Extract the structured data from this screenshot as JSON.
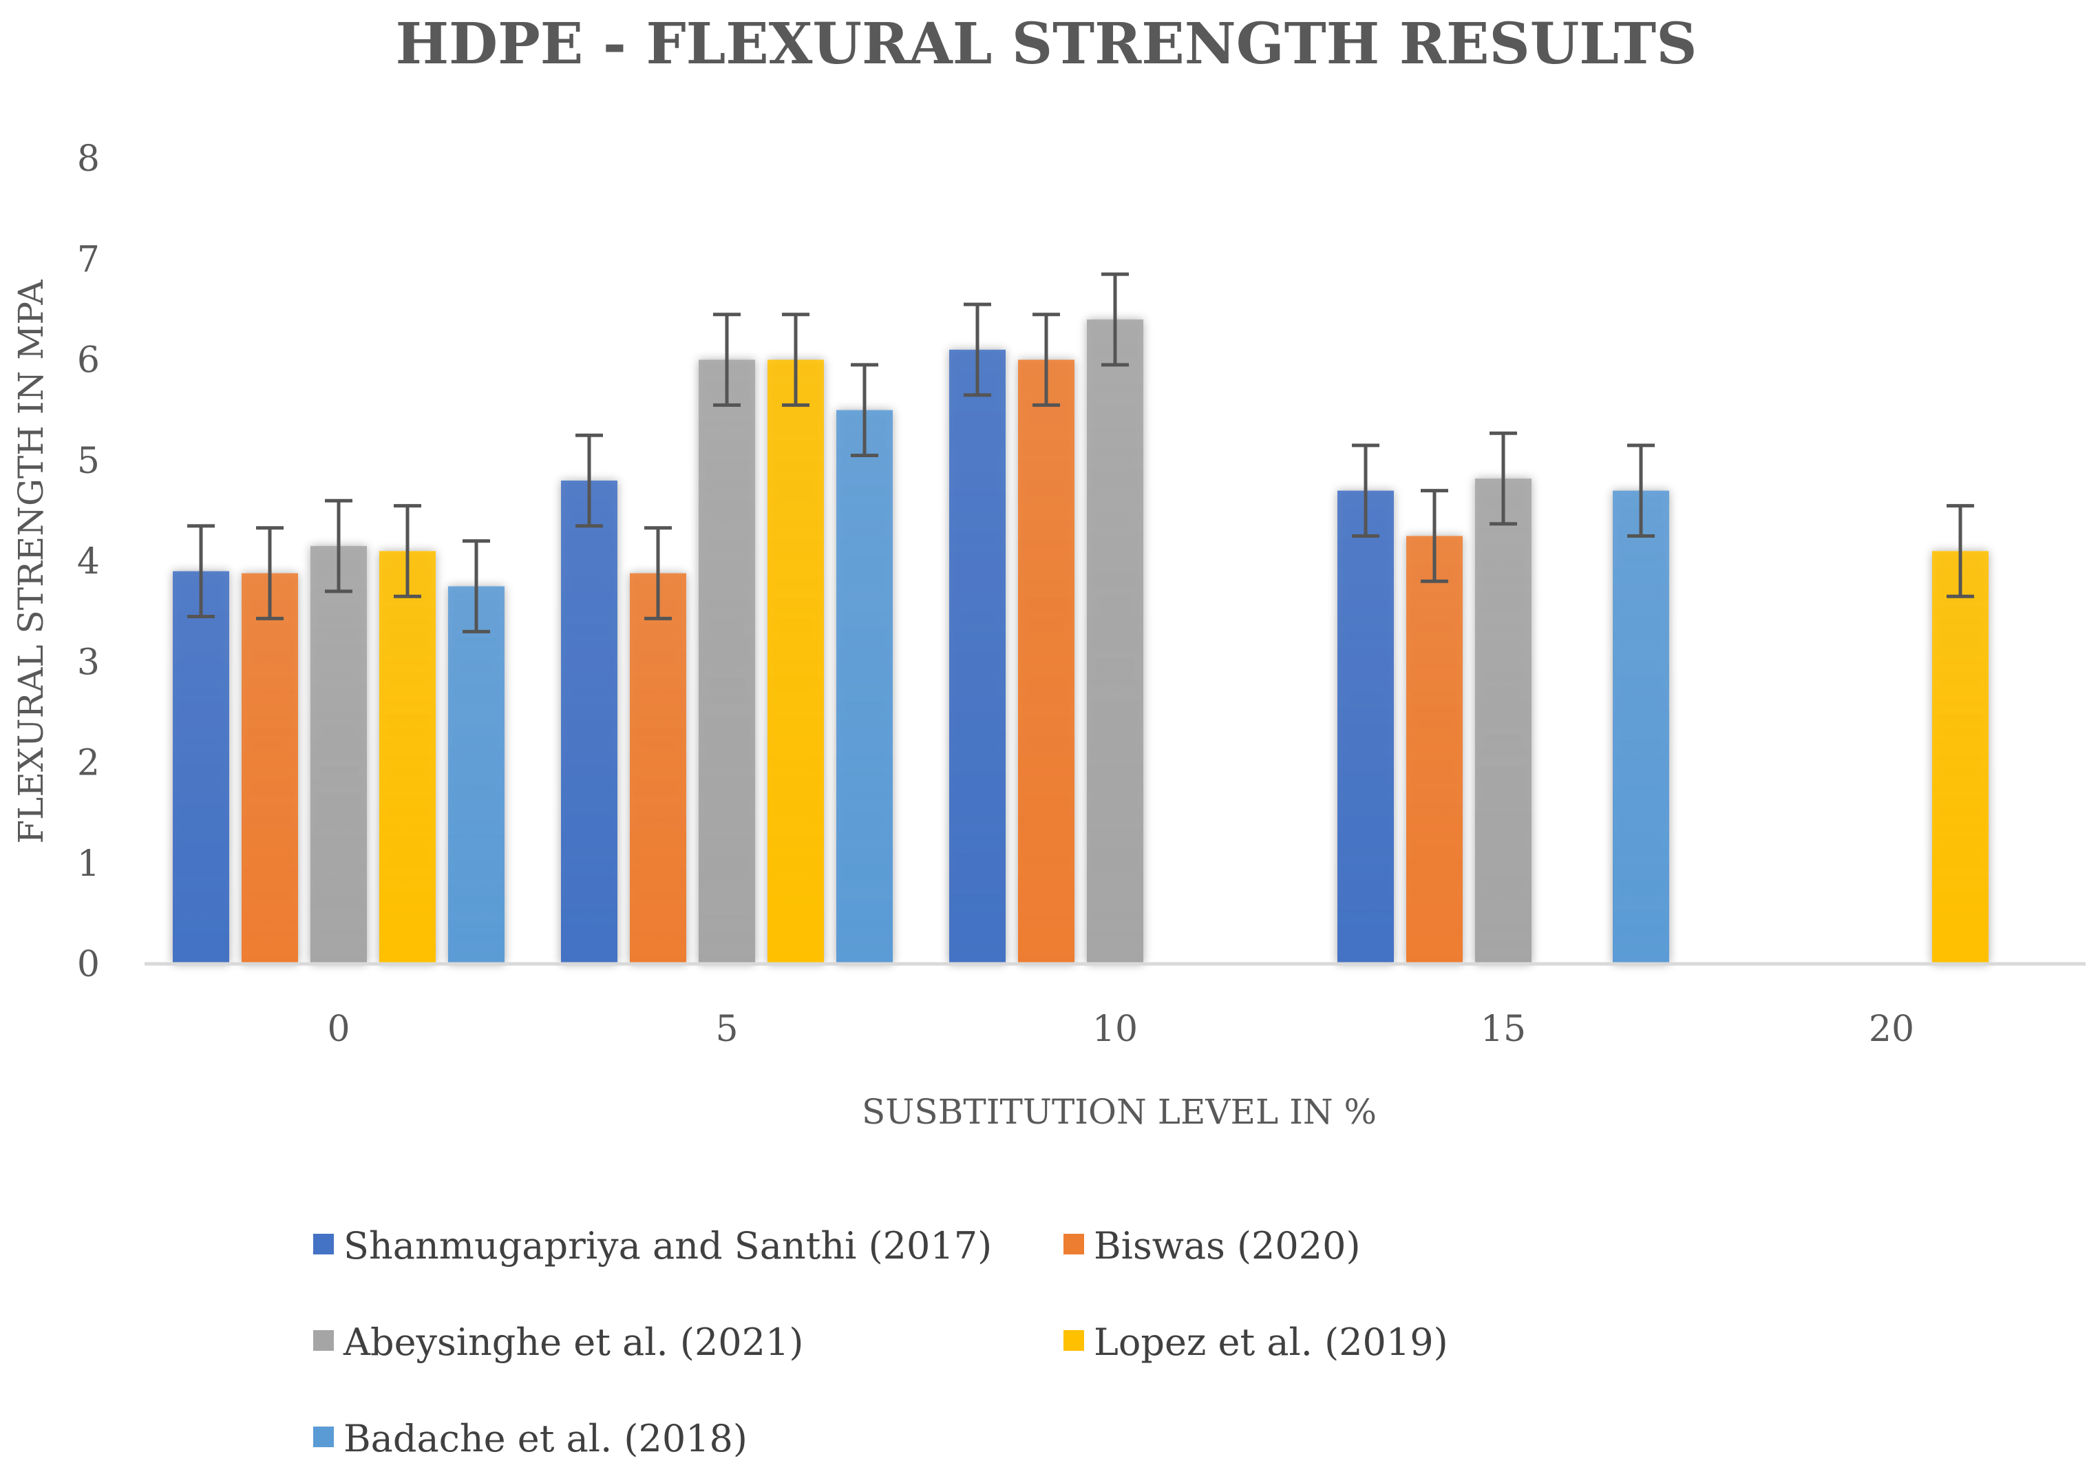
{
  "chart_data": {
    "type": "bar",
    "title": "HDPE - FLEXURAL STRENGTH RESULTS",
    "xlabel": "SUSBTITUTION LEVEL IN %",
    "ylabel": "FLEXURAL STRENGTH IN MPA",
    "ylim": [
      0,
      8
    ],
    "yticks": [
      "0",
      "1",
      "2",
      "3",
      "4",
      "5",
      "6",
      "7",
      "8"
    ],
    "categories": [
      "0",
      "5",
      "10",
      "15",
      "20"
    ],
    "error_bar": 0.45,
    "legend_position": "bottom",
    "series": [
      {
        "name": "Shanmugapriya and Santhi (2017)",
        "color": "#4472C4",
        "values": [
          3.9,
          4.8,
          6.1,
          4.7,
          null
        ]
      },
      {
        "name": "Biswas (2020)",
        "color": "#ED7D31",
        "values": [
          3.88,
          3.88,
          6.0,
          4.25,
          null
        ]
      },
      {
        "name": "Abeysinghe et al. (2021)",
        "color": "#A5A5A5",
        "values": [
          4.15,
          6.0,
          6.4,
          4.82,
          null
        ]
      },
      {
        "name": "Lopez et al. (2019)",
        "color": "#FFC000",
        "values": [
          4.1,
          6.0,
          null,
          null,
          4.1
        ]
      },
      {
        "name": "Badache et al. (2018)",
        "color": "#5B9BD5",
        "values": [
          3.75,
          5.5,
          null,
          4.7,
          null
        ]
      }
    ]
  }
}
